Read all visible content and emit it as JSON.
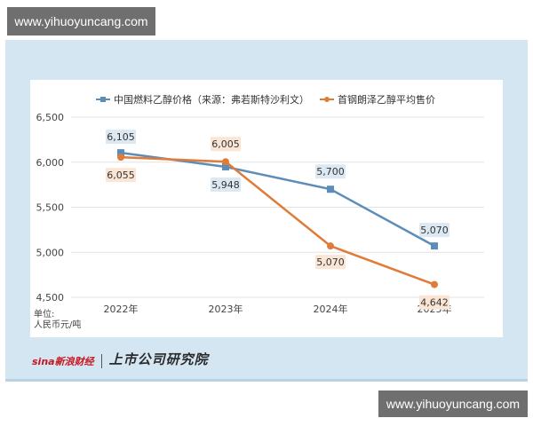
{
  "watermark_top": "www.yihuoyuncang.com",
  "watermark_bottom": "www.yihuoyuncang.com",
  "unit_label": "单位:\n人民币元/吨",
  "brand": {
    "sina": "sina新浪财经",
    "research": "上市公司研究院"
  },
  "colors": {
    "series1": "#5b8db8",
    "series2": "#e07b39",
    "label1_bg": "#dce9f3",
    "label2_bg": "#fbe6d6",
    "frame": "#d3e6f2"
  },
  "chart_data": {
    "type": "line",
    "categories": [
      "2022年",
      "2023年",
      "2024年",
      "2025年"
    ],
    "yticks": [
      "4,500",
      "5,000",
      "5,500",
      "6,000",
      "6,500"
    ],
    "ylim": [
      4500,
      6500
    ],
    "grid": true,
    "legend_position": "top",
    "series": [
      {
        "name": "中国燃料乙醇价格（来源：弗若斯特沙利文）",
        "values": [
          6105,
          5948,
          5700,
          5070
        ],
        "labels": [
          "6,105",
          "5,948",
          "5,700",
          "5,070"
        ]
      },
      {
        "name": "首钢朗泽乙醇平均售价",
        "values": [
          6055,
          6005,
          5070,
          4642
        ],
        "labels": [
          "6,055",
          "6,005",
          "5,070",
          "4,642"
        ]
      }
    ]
  }
}
